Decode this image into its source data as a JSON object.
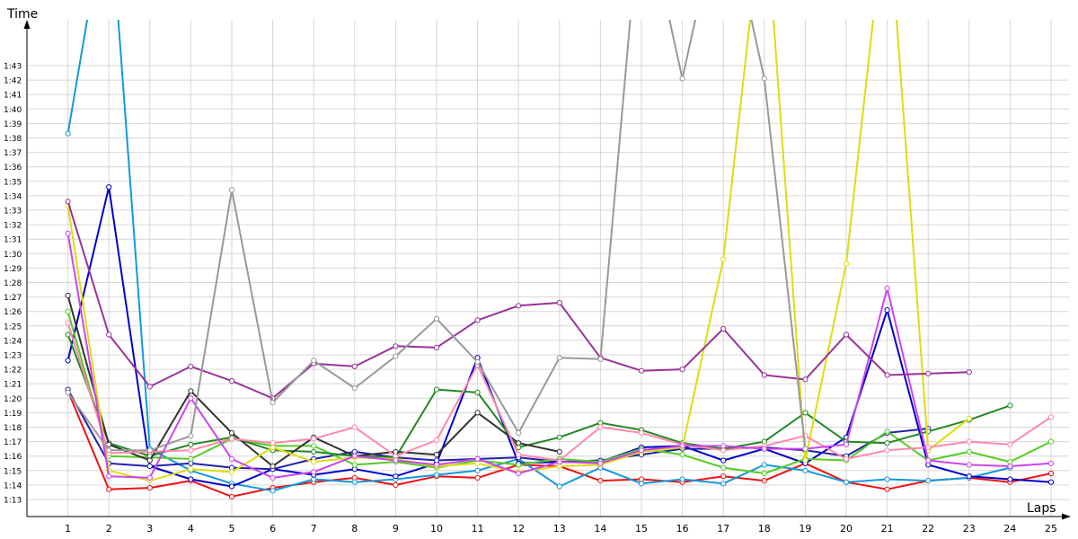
{
  "chart_data": {
    "type": "line",
    "xlabel": "Laps",
    "ylabel": "Time",
    "ylabel_unit": "minutes:seconds",
    "x_ticks": [
      "1",
      "2",
      "3",
      "4",
      "5",
      "6",
      "7",
      "8",
      "9",
      "10",
      "11",
      "12",
      "13",
      "14",
      "15",
      "16",
      "17",
      "18",
      "19",
      "20",
      "21",
      "22",
      "23",
      "24",
      "25"
    ],
    "y_ticks": [
      "1:13",
      "1:14",
      "1:15",
      "1:16",
      "1:17",
      "1:18",
      "1:19",
      "1:20",
      "1:21",
      "1:22",
      "1:23",
      "1:24",
      "1:25",
      "1:26",
      "1:27",
      "1:28",
      "1:29",
      "1:30",
      "1:31",
      "1:32",
      "1:33",
      "1:34",
      "1:35",
      "1:36",
      "1:37",
      "1:38",
      "1:39",
      "1:40",
      "1:41",
      "1:42",
      "1:43"
    ],
    "xlim": [
      0,
      25
    ],
    "ylim_seconds": [
      72,
      108
    ],
    "grid": true,
    "legend": "none",
    "series": [
      {
        "color": "#ee1111",
        "values": [
          80.5,
          73.7,
          73.8,
          74.3,
          73.2,
          73.8,
          74.2,
          74.5,
          74.0,
          74.6,
          74.5,
          75.4,
          75.3,
          74.3,
          74.4,
          74.2,
          74.6,
          74.3,
          75.5,
          74.2,
          73.7,
          74.3,
          74.5,
          74.2,
          74.8
        ]
      },
      {
        "color": "#1199dd",
        "values": [
          98.3,
          115.0,
          76.5,
          75.0,
          74.1,
          73.6,
          74.4,
          74.2,
          74.4,
          74.7,
          75.0,
          75.8,
          73.9,
          75.2,
          74.1,
          74.4,
          74.1,
          75.4,
          75.0,
          74.2,
          74.4,
          74.3,
          74.5,
          75.2,
          null
        ]
      },
      {
        "color": "#0000cc",
        "values": [
          82.6,
          94.6,
          75.3,
          74.4,
          73.9,
          75.1,
          74.7,
          75.1,
          74.6,
          75.5,
          82.8,
          75.5,
          75.6,
          75.6,
          76.6,
          76.7,
          75.7,
          76.5,
          75.5,
          77.3,
          86.1,
          75.4,
          74.6,
          74.4,
          74.2
        ]
      },
      {
        "color": "#2222aa",
        "values": [
          80.6,
          75.5,
          75.3,
          75.5,
          75.2,
          75.1,
          75.8,
          76.3,
          75.9,
          75.7,
          75.8,
          75.9,
          75.6,
          75.7,
          76.1,
          76.5,
          76.5,
          76.6,
          76.4,
          76.0,
          77.6,
          77.9,
          null,
          null,
          null
        ]
      },
      {
        "color": "#55cc22",
        "values": [
          86.0,
          76.0,
          75.9,
          75.8,
          77.2,
          76.7,
          76.7,
          75.4,
          75.6,
          75.2,
          75.7,
          75.4,
          75.8,
          75.6,
          76.5,
          76.1,
          75.2,
          74.8,
          75.8,
          75.7,
          77.7,
          75.7,
          76.3,
          75.6,
          77.0
        ]
      },
      {
        "color": "#228822",
        "values": [
          84.4,
          76.9,
          76.0,
          76.8,
          77.3,
          76.4,
          76.3,
          76.0,
          75.9,
          80.6,
          80.4,
          76.6,
          77.3,
          78.3,
          77.8,
          76.9,
          76.5,
          77.0,
          79.0,
          77.0,
          76.9,
          77.7,
          78.5,
          79.5,
          null
        ]
      },
      {
        "color": "#333333",
        "values": [
          87.1,
          76.8,
          75.7,
          80.5,
          77.6,
          75.3,
          77.3,
          76.0,
          76.3,
          76.1,
          79.0,
          76.9,
          76.3,
          null,
          null,
          null,
          null,
          null,
          null,
          null,
          null,
          null,
          null,
          null,
          null
        ]
      },
      {
        "color": "#dddd11",
        "values": [
          93.3,
          75.0,
          74.3,
          75.1,
          74.9,
          76.6,
          75.6,
          75.9,
          75.8,
          75.3,
          75.5,
          74.9,
          75.3,
          75.4,
          76.3,
          76.6,
          89.6,
          115.0,
          75.7,
          89.3,
          115.0,
          76.4,
          78.6,
          null,
          null
        ]
      },
      {
        "color": "#ff88aa",
        "values": [
          85.2,
          76.2,
          76.3,
          76.4,
          77.2,
          76.9,
          77.2,
          78.0,
          76.0,
          77.1,
          82.3,
          76.1,
          75.7,
          78.0,
          77.6,
          76.8,
          76.4,
          76.7,
          77.4,
          75.8,
          76.4,
          76.6,
          77.0,
          76.8,
          78.7
        ]
      },
      {
        "color": "#cc44ee",
        "values": [
          91.4,
          74.6,
          74.5,
          80.0,
          75.8,
          74.5,
          74.9,
          76.0,
          75.7,
          75.4,
          75.8,
          74.8,
          75.6,
          75.5,
          76.4,
          76.7,
          76.7,
          76.5,
          76.5,
          76.8,
          87.6,
          75.7,
          75.4,
          75.3,
          75.5
        ]
      },
      {
        "color": "#993399",
        "values": [
          93.6,
          84.4,
          80.8,
          82.2,
          81.2,
          80.0,
          82.4,
          82.2,
          83.6,
          83.5,
          85.4,
          86.4,
          86.6,
          82.8,
          81.9,
          82.0,
          84.8,
          81.6,
          81.3,
          84.4,
          81.6,
          81.7,
          81.8,
          null,
          null
        ]
      },
      {
        "color": "#999999",
        "values": [
          80.4,
          76.4,
          76.4,
          77.4,
          94.4,
          79.7,
          82.6,
          80.7,
          82.9,
          85.5,
          82.5,
          77.6,
          82.8,
          82.7,
          115.0,
          102.1,
          115.0,
          102.1,
          76.5,
          null,
          null,
          null,
          null,
          null,
          null
        ]
      }
    ]
  }
}
